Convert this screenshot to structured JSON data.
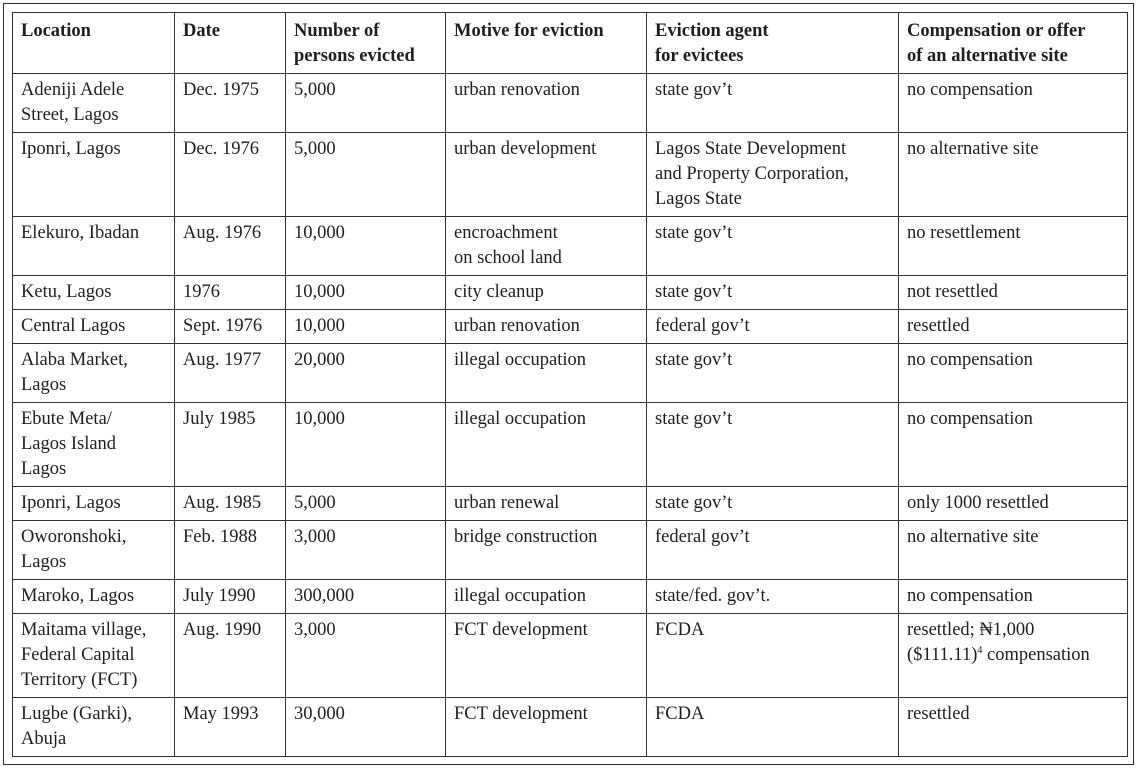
{
  "table": {
    "headers": [
      "Location",
      "Date",
      "Number of\npersons evicted",
      "Motive for eviction",
      "Eviction agent\nfor evictees",
      "Compensation or offer\nof an alternative site"
    ],
    "rows": [
      [
        "Adeniji Adele\nStreet, Lagos",
        "Dec. 1975",
        "5,000",
        "urban renovation",
        "state gov’t",
        "no compensation"
      ],
      [
        "Iponri, Lagos",
        "Dec. 1976",
        "5,000",
        "urban development",
        "Lagos State Development\nand Property Corporation,\nLagos State",
        "no alternative site"
      ],
      [
        "Elekuro, Ibadan",
        "Aug. 1976",
        "10,000",
        "encroachment\non school land",
        "state gov’t",
        "no resettlement"
      ],
      [
        "Ketu, Lagos",
        "1976",
        "10,000",
        "city cleanup",
        "state gov’t",
        "not resettled"
      ],
      [
        "Central Lagos",
        "Sept. 1976",
        "10,000",
        "urban renovation",
        "federal gov’t",
        "resettled"
      ],
      [
        "Alaba Market,\nLagos",
        "Aug. 1977",
        "20,000",
        "illegal occupation",
        "state gov’t",
        "no compensation"
      ],
      [
        "Ebute Meta/\nLagos Island\nLagos",
        "July 1985",
        "10,000",
        "illegal occupation",
        "state gov’t",
        "no compensation"
      ],
      [
        "Iponri, Lagos",
        "Aug. 1985",
        "5,000",
        "urban renewal",
        "state gov’t",
        "only 1000 resettled"
      ],
      [
        "Oworonshoki,\nLagos",
        "Feb. 1988",
        "3,000",
        "bridge construction",
        "federal gov’t",
        "no alternative site"
      ],
      [
        "Maroko, Lagos",
        "July 1990",
        "300,000",
        "illegal occupation",
        "state/fed. gov’t.",
        "no compensation"
      ],
      [
        "Maitama village,\nFederal Capital\nTerritory (FCT)",
        "Aug. 1990",
        "3,000",
        "FCT development",
        "FCDA",
        "resettled; ₦1,000\n($111.11)"
      ],
      [
        "Lugbe (Garki),\nAbuja",
        "May 1993",
        "30,000",
        "FCT development",
        "FCDA",
        "resettled"
      ]
    ],
    "footnote_marker": "4",
    "footnote_tail": " compensation"
  }
}
